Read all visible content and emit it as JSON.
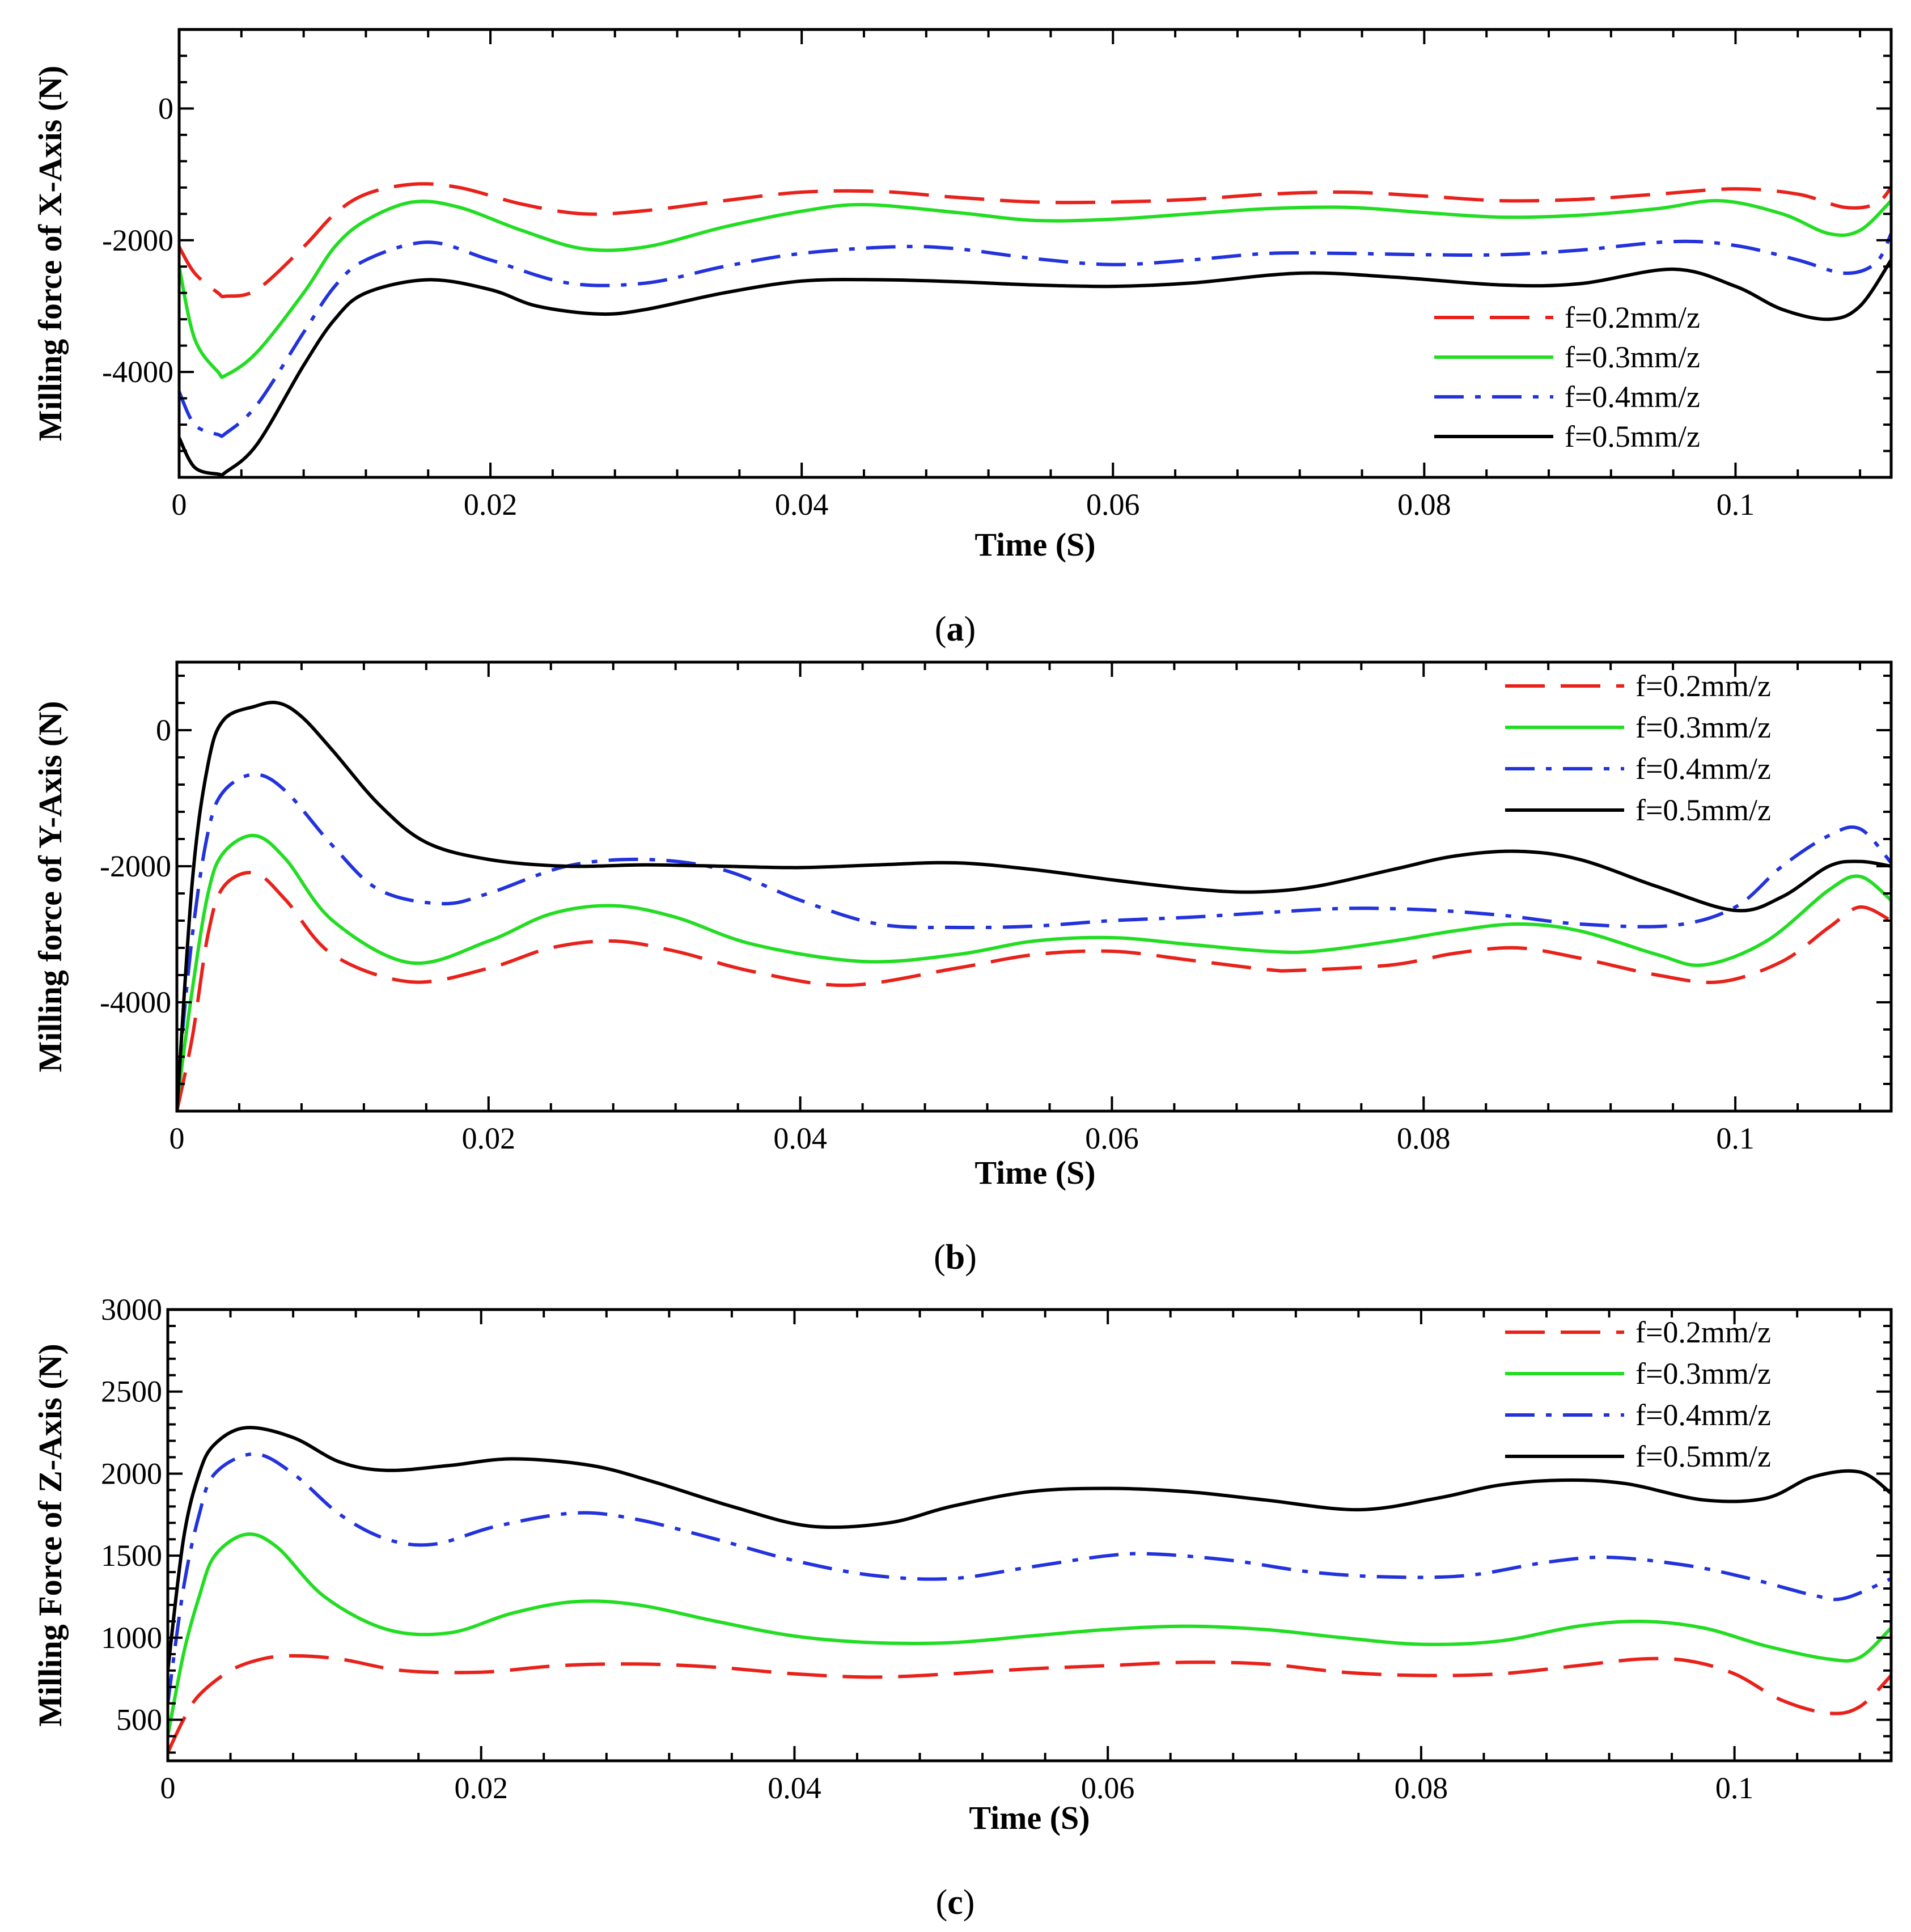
{
  "colors": {
    "f02": "#e8221a",
    "f03": "#22dd22",
    "f04": "#2233dd",
    "f05": "#000000"
  },
  "chart_data": [
    {
      "type": "line",
      "caption_letter": "a",
      "caption_open": "(",
      "caption_close": ")",
      "xlabel": "Time (S)",
      "ylabel": "Milling force of X-Axis (N)",
      "xlim": [
        0,
        0.11
      ],
      "ylim": [
        -5600,
        1200
      ],
      "xticks": [
        0,
        0.02,
        0.04,
        0.06,
        0.08,
        0.1
      ],
      "xtick_labels": [
        "0",
        "0.02",
        "0.04",
        "0.06",
        "0.08",
        "0.1"
      ],
      "yticks": [
        0,
        -2000,
        -4000
      ],
      "ytick_labels": [
        "0",
        "-2000",
        "-4000"
      ],
      "legend": [
        "f=0.2mm/z",
        "f=0.3mm/z",
        "f=0.4mm/z",
        "f=0.5mm/z"
      ],
      "legend_position": "bottom-right",
      "series": [
        {
          "name": "f=0.2mm/z",
          "style": "dashed",
          "color_key": "f02",
          "x": [
            0,
            0.001,
            0.0025,
            0.003,
            0.005,
            0.008,
            0.01,
            0.012,
            0.015,
            0.018,
            0.022,
            0.026,
            0.03,
            0.035,
            0.04,
            0.045,
            0.05,
            0.055,
            0.06,
            0.065,
            0.07,
            0.075,
            0.08,
            0.085,
            0.09,
            0.095,
            0.1,
            0.104,
            0.107,
            0.109,
            0.11
          ],
          "y": [
            -2100,
            -2500,
            -2800,
            -2850,
            -2750,
            -2100,
            -1600,
            -1300,
            -1150,
            -1200,
            -1450,
            -1600,
            -1550,
            -1400,
            -1270,
            -1260,
            -1350,
            -1420,
            -1420,
            -1380,
            -1300,
            -1270,
            -1330,
            -1400,
            -1380,
            -1300,
            -1220,
            -1300,
            -1500,
            -1450,
            -1200
          ]
        },
        {
          "name": "f=0.3mm/z",
          "style": "solid",
          "color_key": "f03",
          "x": [
            0,
            0.001,
            0.0025,
            0.003,
            0.005,
            0.008,
            0.01,
            0.012,
            0.015,
            0.018,
            0.022,
            0.026,
            0.03,
            0.035,
            0.04,
            0.044,
            0.05,
            0.055,
            0.06,
            0.065,
            0.07,
            0.075,
            0.08,
            0.085,
            0.09,
            0.095,
            0.099,
            0.103,
            0.106,
            0.108,
            0.11
          ],
          "y": [
            -2400,
            -3500,
            -4000,
            -4050,
            -3700,
            -2800,
            -2100,
            -1700,
            -1420,
            -1500,
            -1850,
            -2130,
            -2100,
            -1800,
            -1560,
            -1460,
            -1580,
            -1700,
            -1680,
            -1600,
            -1520,
            -1500,
            -1580,
            -1650,
            -1620,
            -1520,
            -1400,
            -1600,
            -1900,
            -1850,
            -1400
          ]
        },
        {
          "name": "f=0.4mm/z",
          "style": "dashdot",
          "color_key": "f04",
          "x": [
            0,
            0.001,
            0.0025,
            0.003,
            0.005,
            0.008,
            0.01,
            0.012,
            0.016,
            0.02,
            0.025,
            0.03,
            0.035,
            0.04,
            0.046,
            0.05,
            0.055,
            0.06,
            0.065,
            0.07,
            0.075,
            0.08,
            0.085,
            0.09,
            0.096,
            0.1,
            0.104,
            0.107,
            0.109,
            0.11
          ],
          "y": [
            -4300,
            -4800,
            -4950,
            -4930,
            -4500,
            -3400,
            -2700,
            -2300,
            -2030,
            -2300,
            -2650,
            -2650,
            -2400,
            -2200,
            -2100,
            -2130,
            -2280,
            -2370,
            -2300,
            -2200,
            -2200,
            -2220,
            -2220,
            -2150,
            -2020,
            -2080,
            -2300,
            -2500,
            -2350,
            -1900
          ]
        },
        {
          "name": "f=0.5mm/z",
          "style": "solid",
          "color_key": "f05",
          "x": [
            0,
            0.001,
            0.0025,
            0.003,
            0.005,
            0.008,
            0.01,
            0.012,
            0.016,
            0.02,
            0.023,
            0.027,
            0.03,
            0.035,
            0.04,
            0.045,
            0.05,
            0.055,
            0.06,
            0.065,
            0.072,
            0.078,
            0.085,
            0.09,
            0.096,
            0.1,
            0.103,
            0.106,
            0.108,
            0.11
          ],
          "y": [
            -5000,
            -5450,
            -5550,
            -5520,
            -5100,
            -3900,
            -3200,
            -2800,
            -2600,
            -2750,
            -3000,
            -3120,
            -3050,
            -2800,
            -2620,
            -2600,
            -2630,
            -2680,
            -2700,
            -2650,
            -2500,
            -2560,
            -2680,
            -2660,
            -2440,
            -2700,
            -3050,
            -3200,
            -3000,
            -2300
          ]
        }
      ]
    },
    {
      "type": "line",
      "caption_letter": "b",
      "caption_open": "(",
      "caption_close": ")",
      "xlabel": "Time (S)",
      "ylabel": "Milling force of Y-Axis (N)",
      "xlim": [
        0,
        0.11
      ],
      "ylim": [
        -5600,
        1000
      ],
      "xticks": [
        0,
        0.02,
        0.04,
        0.06,
        0.08,
        0.1
      ],
      "xtick_labels": [
        "0",
        "0.02",
        "0.04",
        "0.06",
        "0.08",
        "0.1"
      ],
      "yticks": [
        0,
        -2000,
        -4000
      ],
      "ytick_labels": [
        "0",
        "-2000",
        "-4000"
      ],
      "legend": [
        "f=0.2mm/z",
        "f=0.3mm/z",
        "f=0.4mm/z",
        "f=0.5mm/z"
      ],
      "legend_position": "top-right",
      "series": [
        {
          "name": "f=0.2mm/z",
          "style": "dashed",
          "color_key": "f02",
          "x": [
            0,
            0.001,
            0.002,
            0.003,
            0.005,
            0.007,
            0.01,
            0.015,
            0.02,
            0.024,
            0.028,
            0.032,
            0.037,
            0.043,
            0.05,
            0.055,
            0.06,
            0.065,
            0.07,
            0.072,
            0.078,
            0.082,
            0.086,
            0.09,
            0.095,
            0.099,
            0.103,
            0.106,
            0.108,
            0.11
          ],
          "y": [
            -5600,
            -4500,
            -3000,
            -2300,
            -2100,
            -2500,
            -3300,
            -3700,
            -3500,
            -3200,
            -3100,
            -3250,
            -3550,
            -3750,
            -3500,
            -3300,
            -3250,
            -3380,
            -3520,
            -3530,
            -3450,
            -3280,
            -3200,
            -3350,
            -3600,
            -3700,
            -3400,
            -2900,
            -2600,
            -2800
          ]
        },
        {
          "name": "f=0.3mm/z",
          "style": "solid",
          "color_key": "f03",
          "x": [
            0,
            0.001,
            0.002,
            0.003,
            0.005,
            0.007,
            0.01,
            0.015,
            0.02,
            0.024,
            0.028,
            0.032,
            0.037,
            0.044,
            0.05,
            0.055,
            0.06,
            0.065,
            0.07,
            0.073,
            0.078,
            0.082,
            0.086,
            0.09,
            0.095,
            0.098,
            0.102,
            0.106,
            0.108,
            0.11
          ],
          "y": [
            -5500,
            -3800,
            -2400,
            -1800,
            -1550,
            -1900,
            -2800,
            -3420,
            -3100,
            -2700,
            -2580,
            -2750,
            -3150,
            -3400,
            -3300,
            -3100,
            -3050,
            -3150,
            -3250,
            -3250,
            -3100,
            -2950,
            -2850,
            -2950,
            -3300,
            -3450,
            -3100,
            -2350,
            -2150,
            -2500
          ]
        },
        {
          "name": "f=0.4mm/z",
          "style": "dashdot",
          "color_key": "f04",
          "x": [
            0,
            0.001,
            0.002,
            0.003,
            0.005,
            0.007,
            0.01,
            0.013,
            0.017,
            0.02,
            0.025,
            0.03,
            0.035,
            0.04,
            0.045,
            0.05,
            0.055,
            0.06,
            0.065,
            0.07,
            0.075,
            0.08,
            0.085,
            0.09,
            0.096,
            0.1,
            0.103,
            0.106,
            0.108,
            0.11
          ],
          "y": [
            -5300,
            -3000,
            -1500,
            -900,
            -650,
            -900,
            -1700,
            -2350,
            -2550,
            -2400,
            -2000,
            -1900,
            -2050,
            -2500,
            -2850,
            -2900,
            -2880,
            -2800,
            -2750,
            -2680,
            -2620,
            -2640,
            -2720,
            -2850,
            -2870,
            -2600,
            -2000,
            -1550,
            -1450,
            -1950
          ]
        },
        {
          "name": "f=0.5mm/z",
          "style": "solid",
          "color_key": "f05",
          "x": [
            0,
            0.001,
            0.002,
            0.003,
            0.005,
            0.0065,
            0.008,
            0.01,
            0.013,
            0.016,
            0.02,
            0.025,
            0.03,
            0.035,
            0.04,
            0.045,
            0.05,
            0.055,
            0.06,
            0.065,
            0.069,
            0.073,
            0.078,
            0.082,
            0.086,
            0.09,
            0.095,
            0.1,
            0.103,
            0.106,
            0.108,
            0.11
          ],
          "y": [
            -5600,
            -2200,
            -500,
            150,
            350,
            400,
            200,
            -300,
            -1100,
            -1650,
            -1900,
            -2000,
            -1980,
            -2000,
            -2020,
            -1980,
            -1950,
            -2050,
            -2200,
            -2330,
            -2380,
            -2300,
            -2050,
            -1850,
            -1780,
            -1900,
            -2300,
            -2650,
            -2450,
            -2000,
            -1930,
            -2000
          ]
        }
      ]
    },
    {
      "type": "line",
      "caption_letter": "c",
      "caption_open": "(",
      "caption_close": ")",
      "xlabel": "Time (S)",
      "ylabel": "Milling Force of Z-Axis (N)",
      "xlim": [
        0,
        0.11
      ],
      "ylim": [
        250,
        3000
      ],
      "xticks": [
        0,
        0.02,
        0.04,
        0.06,
        0.08,
        0.1
      ],
      "xtick_labels": [
        "0",
        "0.02",
        "0.04",
        "0.06",
        "0.08",
        "0.1"
      ],
      "yticks": [
        500,
        1000,
        1500,
        2000,
        2500,
        3000
      ],
      "ytick_labels": [
        "500",
        "1000",
        "1500",
        "2000",
        "2500",
        "3000"
      ],
      "legend": [
        "f=0.2mm/z",
        "f=0.3mm/z",
        "f=0.4mm/z",
        "f=0.5mm/z"
      ],
      "legend_position": "top-right",
      "series": [
        {
          "name": "f=0.2mm/z",
          "style": "dashed",
          "color_key": "f02",
          "x": [
            0,
            0.001,
            0.002,
            0.004,
            0.006,
            0.008,
            0.011,
            0.015,
            0.02,
            0.025,
            0.03,
            0.035,
            0.04,
            0.045,
            0.05,
            0.055,
            0.06,
            0.065,
            0.07,
            0.075,
            0.08,
            0.085,
            0.09,
            0.094,
            0.097,
            0.1,
            0.103,
            0.106,
            0.108,
            0.11
          ],
          "y": [
            300,
            500,
            650,
            800,
            870,
            890,
            870,
            800,
            790,
            830,
            840,
            820,
            780,
            760,
            780,
            810,
            830,
            850,
            840,
            790,
            770,
            780,
            830,
            870,
            860,
            780,
            620,
            540,
            580,
            770
          ]
        },
        {
          "name": "f=0.3mm/z",
          "style": "solid",
          "color_key": "f03",
          "x": [
            0,
            0.001,
            0.002,
            0.003,
            0.005,
            0.007,
            0.01,
            0.014,
            0.018,
            0.022,
            0.026,
            0.03,
            0.035,
            0.04,
            0.045,
            0.05,
            0.055,
            0.06,
            0.065,
            0.07,
            0.075,
            0.08,
            0.085,
            0.09,
            0.094,
            0.098,
            0.102,
            0.106,
            0.108,
            0.11
          ],
          "y": [
            400,
            900,
            1250,
            1500,
            1630,
            1550,
            1250,
            1050,
            1030,
            1150,
            1220,
            1200,
            1100,
            1010,
            970,
            970,
            1010,
            1050,
            1070,
            1050,
            1000,
            960,
            980,
            1070,
            1100,
            1060,
            950,
            870,
            880,
            1060
          ]
        },
        {
          "name": "f=0.4mm/z",
          "style": "dashdot",
          "color_key": "f04",
          "x": [
            0,
            0.001,
            0.002,
            0.003,
            0.0055,
            0.008,
            0.011,
            0.014,
            0.017,
            0.021,
            0.026,
            0.03,
            0.035,
            0.04,
            0.045,
            0.05,
            0.055,
            0.06,
            0.063,
            0.068,
            0.073,
            0.078,
            0.083,
            0.088,
            0.092,
            0.097,
            0.101,
            0.105,
            0.107,
            0.11
          ],
          "y": [
            600,
            1300,
            1750,
            2000,
            2120,
            2000,
            1750,
            1600,
            1570,
            1680,
            1760,
            1720,
            1600,
            1470,
            1380,
            1360,
            1430,
            1500,
            1510,
            1470,
            1400,
            1370,
            1380,
            1460,
            1490,
            1440,
            1360,
            1260,
            1240,
            1360
          ]
        },
        {
          "name": "f=0.5mm/z",
          "style": "solid",
          "color_key": "f05",
          "x": [
            0,
            0.001,
            0.002,
            0.003,
            0.005,
            0.008,
            0.011,
            0.014,
            0.018,
            0.022,
            0.027,
            0.031,
            0.036,
            0.041,
            0.046,
            0.05,
            0.055,
            0.06,
            0.065,
            0.07,
            0.076,
            0.081,
            0.085,
            0.089,
            0.093,
            0.098,
            0.102,
            0.105,
            0.108,
            0.11
          ],
          "y": [
            800,
            1600,
            2000,
            2180,
            2280,
            2220,
            2070,
            2020,
            2050,
            2090,
            2050,
            1950,
            1800,
            1680,
            1700,
            1800,
            1890,
            1910,
            1890,
            1840,
            1780,
            1850,
            1930,
            1960,
            1940,
            1840,
            1850,
            1980,
            2010,
            1880
          ]
        }
      ]
    }
  ]
}
